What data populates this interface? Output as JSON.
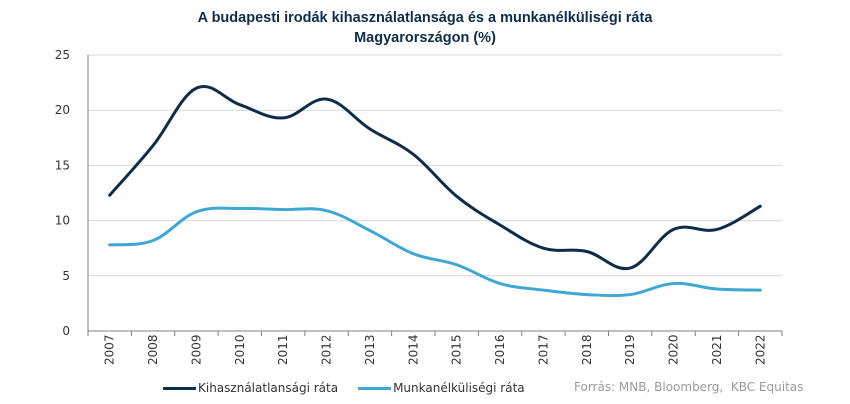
{
  "chart_data": {
    "type": "line",
    "title": "A budapesti irodák kihasználatlansága és a munkanélküliségi ráta",
    "title_line2": "Magyarországon (%)",
    "categories": [
      "2007",
      "2008",
      "2009",
      "2010",
      "2011",
      "2012",
      "2013",
      "2014",
      "2015",
      "2016",
      "2017",
      "2018",
      "2019",
      "2020",
      "2021",
      "2022"
    ],
    "ylim": [
      0,
      25
    ],
    "yticks": [
      "0",
      "5",
      "10",
      "15",
      "20",
      "25"
    ],
    "grid": true,
    "legend_position": "bottom-left",
    "series": [
      {
        "name": "Kihasználatlansági ráta",
        "color": "#0d2d4a",
        "values": [
          12.3,
          16.8,
          22.0,
          20.5,
          19.3,
          21.0,
          18.3,
          16.0,
          12.2,
          9.6,
          7.5,
          7.2,
          5.7,
          9.2,
          9.2,
          11.3
        ]
      },
      {
        "name": "Munkanélküliségi ráta",
        "color": "#3ea7d4",
        "values": [
          7.8,
          8.2,
          10.8,
          11.1,
          11.0,
          10.9,
          9.1,
          7.0,
          6.0,
          4.3,
          3.7,
          3.3,
          3.3,
          4.3,
          3.8,
          3.7
        ]
      }
    ],
    "source": "Forrás: MNB, Bloomberg,  KBC Equitas"
  }
}
